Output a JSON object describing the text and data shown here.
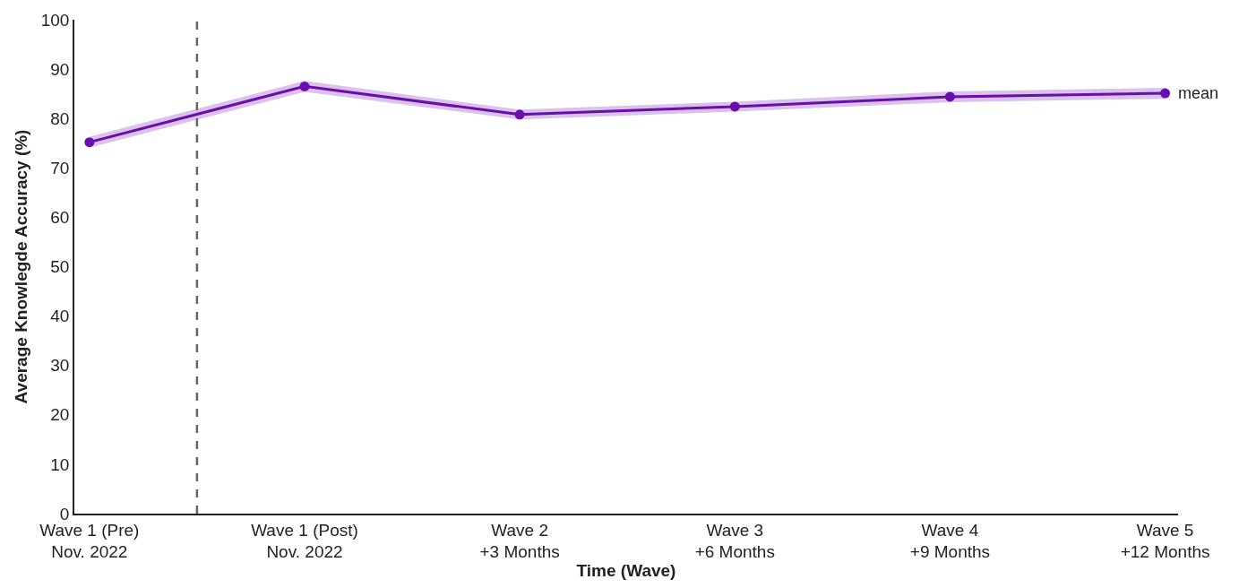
{
  "chart_data": {
    "type": "line",
    "xlabel": "Time (Wave)",
    "ylabel": "Average Knowlegde Accuracy (%)",
    "categories": [
      "Wave 1 (Pre)\nNov. 2022",
      "Wave 1 (Post)\nNov. 2022",
      "Wave 2\n+3 Months",
      "Wave 3\n+6 Months",
      "Wave 4\n+9 Months",
      "Wave 5\n+12 Months"
    ],
    "series": [
      {
        "name": "mean",
        "color": "#6a0dad",
        "values": [
          75.2,
          86.5,
          80.8,
          82.4,
          84.4,
          85.1
        ],
        "lower": [
          74.1,
          85.4,
          79.8,
          81.4,
          83.3,
          84.0
        ],
        "upper": [
          76.3,
          87.6,
          81.8,
          83.4,
          85.5,
          86.2
        ]
      }
    ],
    "ylim": [
      0,
      100
    ],
    "yticks": [
      0,
      10,
      20,
      30,
      40,
      50,
      60,
      70,
      80,
      90,
      100
    ],
    "marker": "circle",
    "line_style": "solid",
    "legend": false
  }
}
